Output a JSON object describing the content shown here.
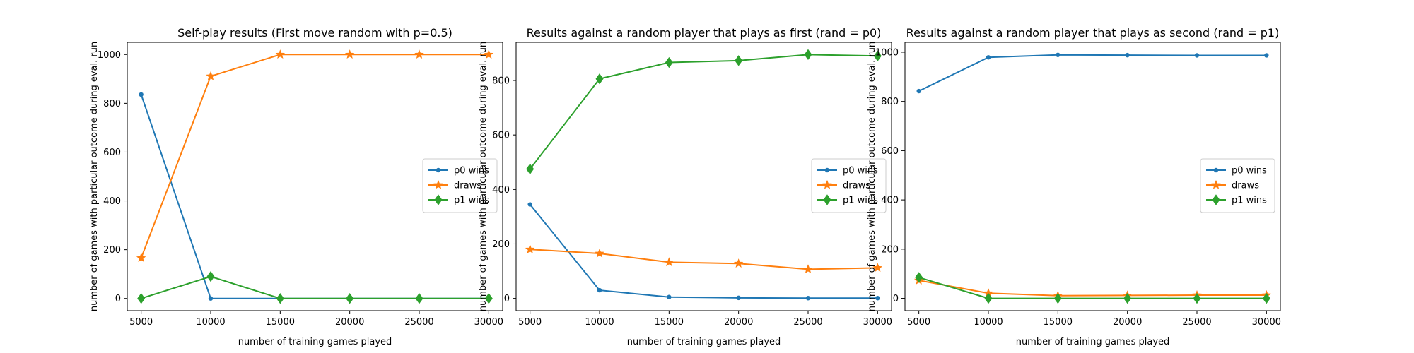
{
  "colors": {
    "p0": "#1f77b4",
    "draws": "#ff7f0e",
    "p1": "#2ca02c"
  },
  "chart_data": [
    {
      "type": "line",
      "title": "Self-play results (First move random with p=0.5)",
      "xlabel": "number of training games played",
      "ylabel": "number of games with particular outcome during eval. run",
      "x": [
        5000,
        10000,
        15000,
        20000,
        25000,
        30000
      ],
      "xticks": [
        "5000",
        "10000",
        "15000",
        "20000",
        "25000",
        "30000"
      ],
      "yticks": [
        "0",
        "200",
        "400",
        "600",
        "800",
        "1000"
      ],
      "ylim": [
        -50,
        1050
      ],
      "xlim": [
        4000,
        31000
      ],
      "grid": false,
      "legend_position": "center-right",
      "series": [
        {
          "name": "p0 wins",
          "marker": "dot",
          "values": [
            836,
            0,
            0,
            0,
            0,
            0
          ]
        },
        {
          "name": "draws",
          "marker": "star",
          "values": [
            166,
            911,
            1000,
            1000,
            1000,
            1000
          ]
        },
        {
          "name": "p1 wins",
          "marker": "diamond",
          "values": [
            0,
            90,
            0,
            0,
            0,
            0
          ]
        }
      ]
    },
    {
      "type": "line",
      "title": "Results against a random player that plays as first (rand = p0)",
      "xlabel": "number of training games played",
      "ylabel": "number of games with particular outcome during eval. run",
      "x": [
        5000,
        10000,
        15000,
        20000,
        25000,
        30000
      ],
      "xticks": [
        "5000",
        "10000",
        "15000",
        "20000",
        "25000",
        "30000"
      ],
      "yticks": [
        "0",
        "200",
        "400",
        "600",
        "800"
      ],
      "ylim": [
        -45,
        940
      ],
      "xlim": [
        4000,
        31000
      ],
      "grid": false,
      "legend_position": "center-right",
      "series": [
        {
          "name": "p0 wins",
          "marker": "dot",
          "values": [
            345,
            30,
            5,
            2,
            1,
            1
          ]
        },
        {
          "name": "draws",
          "marker": "star",
          "values": [
            180,
            165,
            133,
            128,
            107,
            112
          ]
        },
        {
          "name": "p1 wins",
          "marker": "diamond",
          "values": [
            475,
            806,
            866,
            873,
            895,
            890
          ]
        }
      ]
    },
    {
      "type": "line",
      "title": "Results against a random player that plays as second (rand = p1)",
      "xlabel": "number of training games played",
      "ylabel": "number of games with particular outcome during eval. run",
      "x": [
        5000,
        10000,
        15000,
        20000,
        25000,
        30000
      ],
      "xticks": [
        "5000",
        "10000",
        "15000",
        "20000",
        "25000",
        "30000"
      ],
      "yticks": [
        "0",
        "200",
        "400",
        "600",
        "800",
        "1000"
      ],
      "ylim": [
        -50,
        1040
      ],
      "xlim": [
        4000,
        31000
      ],
      "grid": false,
      "legend_position": "center-right",
      "series": [
        {
          "name": "p0 wins",
          "marker": "dot",
          "values": [
            842,
            979,
            989,
            988,
            987,
            987
          ]
        },
        {
          "name": "draws",
          "marker": "star",
          "values": [
            73,
            21,
            11,
            12,
            13,
            13
          ]
        },
        {
          "name": "p1 wins",
          "marker": "diamond",
          "values": [
            85,
            0,
            0,
            0,
            0,
            0
          ]
        }
      ]
    }
  ]
}
